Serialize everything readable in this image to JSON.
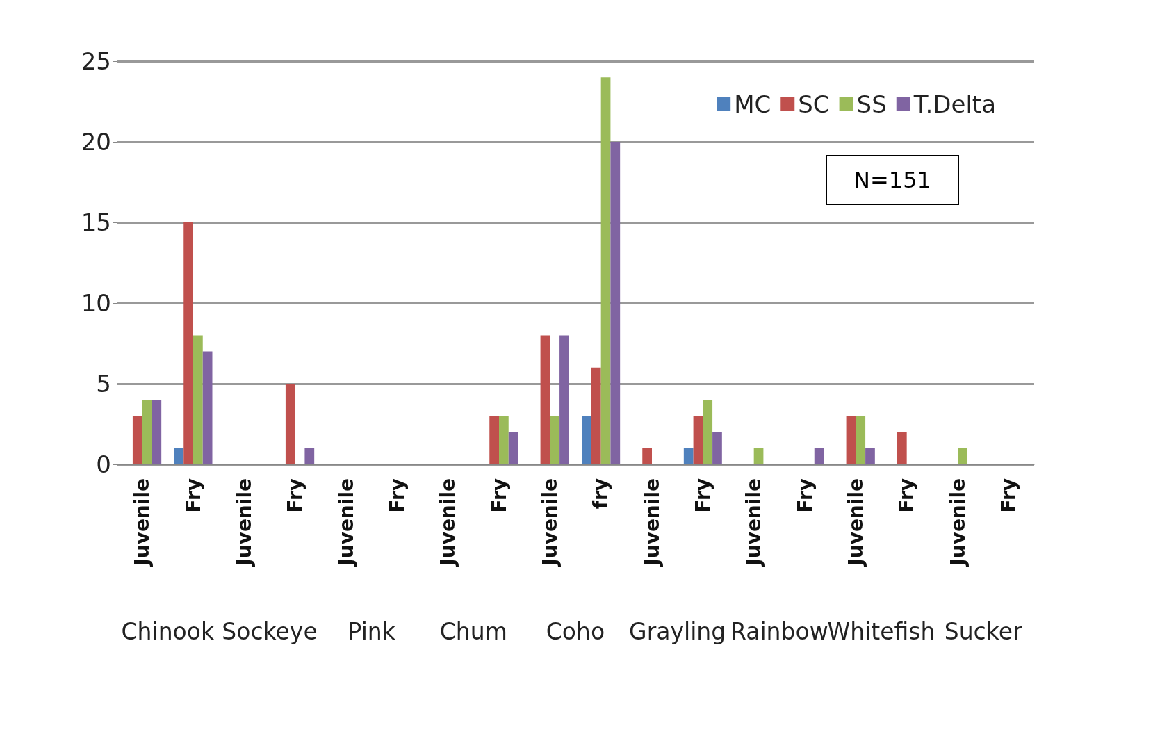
{
  "chart_data": {
    "type": "bar",
    "categories": [
      "Juvenile",
      "Fry",
      "Juvenile",
      "Fry",
      "Juvenile",
      "Fry",
      "Juvenile",
      "Fry",
      "Juvenile",
      "fry",
      "Juvenile",
      "Fry",
      "Juvenile",
      "Fry",
      "Juvenile",
      "Fry",
      "Juvenile",
      "Fry"
    ],
    "series": [
      {
        "name": "MC",
        "color": "#4f81bd",
        "values": [
          0,
          1,
          0,
          0,
          0,
          0,
          0,
          0,
          0,
          3,
          0,
          1,
          0,
          0,
          0,
          0,
          0,
          0
        ]
      },
      {
        "name": "SC",
        "color": "#c0504d",
        "values": [
          3,
          15,
          0,
          5,
          0,
          0,
          0,
          3,
          8,
          6,
          1,
          3,
          0,
          0,
          3,
          2,
          0,
          0
        ]
      },
      {
        "name": "SS",
        "color": "#9bbb59",
        "values": [
          4,
          8,
          0,
          0,
          0,
          0,
          0,
          3,
          3,
          24,
          0,
          4,
          1,
          0,
          3,
          0,
          1,
          0
        ]
      },
      {
        "name": "T.Delta",
        "color": "#8064a2",
        "values": [
          4,
          7,
          0,
          1,
          0,
          0,
          0,
          2,
          8,
          20,
          0,
          2,
          0,
          1,
          1,
          0,
          0,
          0
        ]
      }
    ],
    "annotations": [
      "N=151",
      "Chinook",
      "Sockeye",
      "Pink",
      "Chum",
      "Coho",
      "Grayling",
      "Rainbow",
      "Whitefish",
      "Sucker"
    ],
    "ylim": [
      0,
      25
    ],
    "yticks": [
      0,
      5,
      10,
      15,
      20,
      25
    ],
    "grid": "y",
    "legend": "top right"
  }
}
